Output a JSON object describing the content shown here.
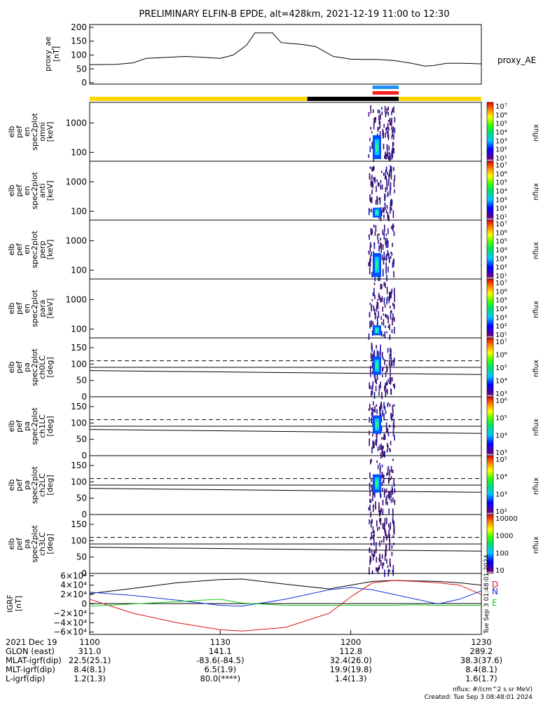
{
  "title": "PRELIMINARY ELFIN-B EPDE, alt=428km, 2021-12-19 11:00 to 12:30",
  "ae_panel": {
    "ylabel": [
      "proxy_ae",
      "[nT]"
    ],
    "yticks": [
      "200",
      "150",
      "100",
      "50",
      "0"
    ],
    "ylim": [
      -5,
      210
    ],
    "series_label": "proxy_AE"
  },
  "status_bars": {
    "colors": [
      "#ffd800",
      "#000000",
      "#1e90ff",
      "#ff2020"
    ]
  },
  "energy_panels": [
    {
      "ylabel": [
        "elb",
        "pef",
        "en",
        "spec2plot",
        "omni",
        "[keV]"
      ],
      "yticks": [
        "1000",
        "100"
      ],
      "cbar_label": "nflux",
      "cbar_ticks": [
        "10⁷",
        "10⁶",
        "10⁵",
        "10⁴",
        "10³",
        "10²",
        "10¹"
      ]
    },
    {
      "ylabel": [
        "elb",
        "pef",
        "en",
        "spec2plot",
        "anti",
        "[keV]"
      ],
      "yticks": [
        "1000",
        "100"
      ],
      "cbar_label": "nflux",
      "cbar_ticks": [
        "10⁷",
        "10⁶",
        "10⁵",
        "10⁴",
        "10³",
        "10²",
        "10¹"
      ]
    },
    {
      "ylabel": [
        "elb",
        "pef",
        "en",
        "spec2plot",
        "perp",
        "[keV]"
      ],
      "yticks": [
        "1000",
        "100"
      ],
      "cbar_label": "nflux",
      "cbar_ticks": [
        "10⁷",
        "10⁶",
        "10⁵",
        "10⁴",
        "10³",
        "10²",
        "10¹"
      ]
    },
    {
      "ylabel": [
        "elb",
        "pef",
        "en",
        "spec2plot",
        "para",
        "[keV]"
      ],
      "yticks": [
        "1000",
        "100"
      ],
      "cbar_label": "nflux",
      "cbar_ticks": [
        "10⁷",
        "10⁶",
        "10⁵",
        "10⁴",
        "10³",
        "10²",
        "10¹"
      ]
    }
  ],
  "pa_panels": [
    {
      "ylabel": [
        "elb",
        "pef",
        "pa",
        "spec2plot",
        "ch0LC",
        "[deg]"
      ],
      "yticks": [
        "150",
        "100",
        "50",
        "0"
      ],
      "cbar_label": "nflux",
      "cbar_ticks": [
        "10⁷",
        "10⁶",
        "10⁵",
        "10⁴",
        "10³"
      ]
    },
    {
      "ylabel": [
        "elb",
        "pef",
        "pa",
        "spec2plot",
        "ch1LC",
        "[deg]"
      ],
      "yticks": [
        "150",
        "100",
        "50",
        "0"
      ],
      "cbar_label": "nflux",
      "cbar_ticks": [
        "10⁶",
        "10⁵",
        "10⁴",
        "10³"
      ]
    },
    {
      "ylabel": [
        "elb",
        "pef",
        "pa",
        "spec2plot",
        "ch2LC",
        "[deg]"
      ],
      "yticks": [
        "150",
        "100",
        "50",
        "0"
      ],
      "cbar_label": "nflux",
      "cbar_ticks": [
        "10⁵",
        "10⁴",
        "10³",
        "10²"
      ]
    },
    {
      "ylabel": [
        "elb",
        "pef",
        "pa",
        "spec2plot",
        "ch3LC",
        "[deg]"
      ],
      "yticks": [
        "150",
        "100",
        "50",
        "0"
      ],
      "cbar_label": "nflux",
      "cbar_ticks": [
        "10000",
        "1000",
        "100",
        "10"
      ]
    }
  ],
  "field_panel": {
    "ylabel": [
      "IGRF",
      "[nT]"
    ],
    "yticks": [
      "6×10⁴",
      "4×10⁴",
      "2×10⁴",
      "0",
      "−2×10⁴",
      "−4×10⁴",
      "−6×10⁴"
    ],
    "component_labels": [
      "D",
      "N",
      "E"
    ],
    "component_colors": [
      "#dd1111",
      "#1133dd",
      "#11cc11"
    ],
    "side_stamp": "Tue Sep  3 01:48:01 2024"
  },
  "footer": {
    "rows": [
      {
        "label": "2021 Dec 19",
        "values": [
          "1100",
          "1130",
          "1200",
          "1230"
        ]
      },
      {
        "label": "GLON (east)",
        "values": [
          "311.0",
          "141.1",
          "112.8",
          "289.2"
        ]
      },
      {
        "label": "MLAT-igrf(dip)",
        "values": [
          "22.5(25.1)",
          "-83.6(-84.5)",
          "32.4(26.0)",
          "38.3(37.6)"
        ]
      },
      {
        "label": "MLT-igrf(dip)",
        "values": [
          "8.4(8.1)",
          "6.5(1.9)",
          "19.9(19.8)",
          "8.4(8.1)"
        ]
      },
      {
        "label": "L-igrf(dip)",
        "values": [
          "1.2(1.3)",
          "80.0(****)",
          "1.4(1.3)",
          "1.6(1.7)"
        ]
      }
    ],
    "units_note": "nflux: #/(cm^2 s sr MeV)",
    "created": "Created: Tue Sep  3 08:48:01 2024"
  },
  "chart_data": {
    "type": "line",
    "title": "PRELIMINARY ELFIN-B EPDE, alt=428km, 2021-12-19 11:00 to 12:30",
    "x_range": [
      "11:00",
      "12:30"
    ],
    "xticks": [
      "1100",
      "1130",
      "1200",
      "1230"
    ],
    "series": [
      {
        "name": "proxy_AE",
        "unit": "nT",
        "x": [
          "11:00",
          "11:06",
          "11:10",
          "11:13",
          "11:18",
          "11:22",
          "11:26",
          "11:30",
          "11:33",
          "11:36",
          "11:38",
          "11:42",
          "11:44",
          "11:46",
          "11:49",
          "11:52",
          "11:56",
          "12:00",
          "12:03",
          "12:06",
          "12:10",
          "12:14",
          "12:17",
          "12:19",
          "12:22",
          "12:26",
          "12:30"
        ],
        "y": [
          65,
          66,
          72,
          88,
          92,
          95,
          92,
          88,
          100,
          135,
          180,
          180,
          145,
          142,
          138,
          130,
          95,
          85,
          84,
          84,
          80,
          70,
          60,
          62,
          70,
          70,
          68
        ]
      }
    ],
    "status_intervals": [
      {
        "color": "yellow",
        "from": "11:00",
        "to": "11:50"
      },
      {
        "color": "black",
        "from": "11:50",
        "to": "12:11"
      },
      {
        "color": "yellow",
        "from": "12:11",
        "to": "12:30"
      },
      {
        "color": "blue",
        "from": "12:05",
        "to": "12:11"
      },
      {
        "color": "red",
        "from": "12:05",
        "to": "12:11"
      }
    ],
    "spectrogram_activity": {
      "from": "12:04",
      "to": "12:10",
      "peak_at": "12:06"
    },
    "energy_ylim_keV": [
      50,
      5000
    ],
    "pa_ylim_deg": [
      0,
      180
    ],
    "igrf": {
      "unit": "nT",
      "ylim": [
        -65000,
        65000
      ],
      "x": [
        "11:00",
        "11:10",
        "11:20",
        "11:30",
        "11:35",
        "11:45",
        "11:55",
        "12:00",
        "12:05",
        "12:10",
        "12:15",
        "12:20",
        "12:25",
        "12:30"
      ],
      "total": [
        22000,
        33000,
        45000,
        52000,
        53000,
        42000,
        32000,
        40000,
        48000,
        50000,
        49000,
        48000,
        45000,
        40000
      ],
      "D": [
        10000,
        -20000,
        -40000,
        -55000,
        -58000,
        -50000,
        -20000,
        15000,
        45000,
        50000,
        48000,
        45000,
        40000,
        20000
      ],
      "N": [
        25000,
        18000,
        8000,
        -3000,
        -5000,
        10000,
        30000,
        35000,
        30000,
        20000,
        10000,
        0,
        10000,
        28000
      ],
      "E": [
        -5000,
        0,
        5000,
        10000,
        2000,
        -3000,
        -3000,
        -3000,
        -3000,
        -3000,
        -2000,
        -3000,
        -3000,
        -3000
      ]
    }
  }
}
